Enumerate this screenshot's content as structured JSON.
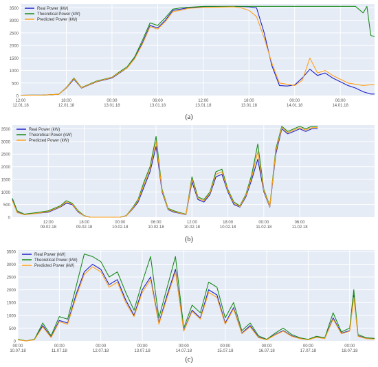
{
  "figure": {
    "captions": [
      "(a)",
      "(b)",
      "(c)"
    ]
  },
  "colors": {
    "real": "#1f1fc8",
    "theoretical": "#1a8a1a",
    "predicted": "#ffa11a",
    "plot_bg": "#e5ecf6",
    "grid": "#ffffff",
    "tick": "#555555"
  },
  "chart_data": [
    {
      "type": "line",
      "ylim": [
        0,
        3650
      ],
      "yticks": [
        0,
        500,
        1000,
        1500,
        2000,
        2500,
        3000,
        3500
      ],
      "xlim": [
        0,
        46.5
      ],
      "xticks": [
        {
          "x": 0,
          "label": "12:00",
          "sub": "12.01.18"
        },
        {
          "x": 6,
          "label": "18:00",
          "sub": "12.01.18"
        },
        {
          "x": 12,
          "label": "00:00",
          "sub": "13.01.18"
        },
        {
          "x": 18,
          "label": "06:00",
          "sub": "13.01.18"
        },
        {
          "x": 24,
          "label": "12:00",
          "sub": "13.01.18"
        },
        {
          "x": 30,
          "label": "18:00",
          "sub": "13.01.18"
        },
        {
          "x": 36,
          "label": "00:00",
          "sub": "14.01.18"
        },
        {
          "x": 42,
          "label": "06:00",
          "sub": "14.01.18"
        }
      ],
      "legend": {
        "placement": "top-left",
        "entries": [
          "Real Power (kW)",
          "Theoretical Power (kW)",
          "Predicted Power (kW)"
        ]
      },
      "series": [
        {
          "name": "Real Power (kW)",
          "x": [
            0,
            3,
            5,
            6,
            7,
            8,
            10,
            12,
            13,
            14,
            15,
            16,
            17,
            18,
            19,
            20,
            21,
            22,
            23,
            24,
            26,
            28,
            29,
            30,
            31,
            32,
            33,
            34,
            35,
            36,
            37,
            38,
            39,
            40,
            41,
            42,
            43,
            44,
            45,
            46,
            46.5
          ],
          "values": [
            10,
            20,
            50,
            300,
            650,
            300,
            550,
            700,
            900,
            1100,
            1500,
            2100,
            2800,
            2700,
            3000,
            3400,
            3450,
            3500,
            3520,
            3540,
            3550,
            3560,
            3550,
            3540,
            3500,
            2500,
            1200,
            400,
            380,
            420,
            700,
            1050,
            800,
            900,
            700,
            550,
            400,
            300,
            150,
            60,
            60
          ]
        },
        {
          "name": "Theoretical Power (kW)",
          "x": [
            0,
            3,
            5,
            6,
            7,
            8,
            10,
            12,
            13,
            14,
            15,
            16,
            17,
            18,
            19,
            20,
            21,
            22,
            23,
            24,
            26,
            28,
            30,
            32,
            34,
            36,
            38,
            40,
            42,
            44,
            45,
            45.5,
            46,
            46.5
          ],
          "values": [
            10,
            20,
            50,
            320,
            700,
            320,
            580,
            730,
            950,
            1150,
            1550,
            2200,
            2900,
            2800,
            3100,
            3450,
            3500,
            3520,
            3540,
            3560,
            3560,
            3560,
            3560,
            3560,
            3560,
            3560,
            3560,
            3560,
            3560,
            3560,
            3300,
            3560,
            2400,
            2350
          ]
        },
        {
          "name": "Predicted Power (kW)",
          "x": [
            0,
            3,
            5,
            6,
            7,
            8,
            10,
            12,
            13,
            14,
            15,
            16,
            17,
            18,
            19,
            20,
            21,
            22,
            23,
            24,
            26,
            28,
            29,
            30,
            31,
            32,
            33,
            34,
            35,
            36,
            37,
            38,
            39,
            40,
            41,
            42,
            43,
            44,
            45,
            46,
            46.5
          ],
          "values": [
            10,
            20,
            50,
            310,
            680,
            310,
            560,
            720,
            920,
            1100,
            1480,
            2050,
            2750,
            2650,
            2950,
            3350,
            3400,
            3480,
            3500,
            3520,
            3530,
            3540,
            3500,
            3400,
            3150,
            2300,
            1300,
            500,
            450,
            400,
            600,
            1500,
            900,
            1000,
            800,
            650,
            500,
            450,
            400,
            430,
            430
          ]
        }
      ]
    },
    {
      "type": "line",
      "ylim": [
        0,
        3650
      ],
      "yticks": [
        0,
        500,
        1000,
        1500,
        2000,
        2500,
        3000,
        3500
      ],
      "xlim": [
        0,
        60.5
      ],
      "xticks": [
        {
          "x": 6,
          "label": "12:00",
          "sub": "09.02.18"
        },
        {
          "x": 12,
          "label": "18:00",
          "sub": "09.02.18"
        },
        {
          "x": 18,
          "label": "00:00",
          "sub": "10.02.18"
        },
        {
          "x": 24,
          "label": "06:00",
          "sub": "10.02.18"
        },
        {
          "x": 30,
          "label": "12:00",
          "sub": "10.02.18"
        },
        {
          "x": 36,
          "label": "18:00",
          "sub": "10.02.18"
        },
        {
          "x": 42,
          "label": "00:00",
          "sub": "11.02.18"
        },
        {
          "x": 48,
          "label": "06:00",
          "sub": "11.02.18"
        }
      ],
      "legend": {
        "placement": "top-left",
        "entries": [
          "Real Power (kW)",
          "Theoretical Power (kW)",
          "Predicted Power (kW)"
        ]
      },
      "series": [
        {
          "name": "Real Power (kW)",
          "x": [
            0,
            0.8,
            2,
            4,
            6,
            8,
            9,
            10,
            11,
            12,
            13,
            15,
            17,
            18,
            19,
            20,
            21,
            22,
            23,
            24,
            25,
            26,
            27,
            28,
            29,
            30,
            31,
            32,
            33,
            34,
            35,
            36,
            37,
            38,
            39,
            40,
            41,
            42,
            43,
            44,
            45,
            46,
            47,
            48,
            49,
            50,
            51
          ],
          "values": [
            700,
            200,
            100,
            150,
            200,
            400,
            550,
            500,
            200,
            50,
            0,
            0,
            0,
            0,
            50,
            300,
            600,
            1200,
            1800,
            2800,
            1000,
            300,
            200,
            150,
            100,
            1400,
            700,
            600,
            900,
            1600,
            1700,
            1000,
            500,
            400,
            800,
            1500,
            2300,
            1000,
            400,
            2500,
            3500,
            3300,
            3400,
            3500,
            3400,
            3500,
            3500
          ]
        },
        {
          "name": "Theoretical Power (kW)",
          "x": [
            0,
            0.8,
            2,
            4,
            6,
            8,
            9,
            10,
            11,
            12,
            13,
            15,
            17,
            18,
            19,
            20,
            21,
            22,
            23,
            24,
            25,
            26,
            27,
            28,
            29,
            30,
            31,
            32,
            33,
            34,
            35,
            36,
            37,
            38,
            39,
            40,
            41,
            42,
            43,
            44,
            45,
            46,
            47,
            48,
            49,
            50,
            51
          ],
          "values": [
            750,
            250,
            120,
            180,
            250,
            450,
            650,
            550,
            250,
            60,
            0,
            0,
            0,
            0,
            60,
            350,
            700,
            1400,
            2000,
            3200,
            1100,
            350,
            250,
            180,
            120,
            1600,
            800,
            700,
            1000,
            1800,
            1900,
            1100,
            600,
            450,
            900,
            1700,
            2900,
            1100,
            450,
            2700,
            3600,
            3400,
            3500,
            3600,
            3500,
            3600,
            3600
          ]
        },
        {
          "name": "Predicted Power (kW)",
          "x": [
            0,
            0.8,
            2,
            4,
            6,
            8,
            9,
            10,
            11,
            12,
            13,
            15,
            17,
            18,
            19,
            20,
            21,
            22,
            23,
            24,
            25,
            26,
            27,
            28,
            29,
            30,
            31,
            32,
            33,
            34,
            35,
            36,
            37,
            38,
            39,
            40,
            41,
            42,
            43,
            44,
            45,
            46,
            47,
            48,
            49,
            50,
            51
          ],
          "values": [
            650,
            180,
            100,
            150,
            220,
            420,
            600,
            520,
            220,
            50,
            0,
            0,
            0,
            0,
            50,
            320,
            650,
            1300,
            1900,
            3000,
            1050,
            320,
            220,
            160,
            110,
            1500,
            750,
            650,
            950,
            1700,
            1800,
            1050,
            550,
            420,
            850,
            1600,
            2600,
            1050,
            420,
            2600,
            3550,
            3350,
            3450,
            3550,
            3450,
            3550,
            3550
          ]
        }
      ]
    },
    {
      "type": "line",
      "ylim": [
        0,
        3550
      ],
      "yticks": [
        0,
        500,
        1000,
        1500,
        2000,
        2500,
        3000,
        3500
      ],
      "xlim": [
        0,
        8.6
      ],
      "xticks": [
        {
          "x": 0,
          "label": "00:00",
          "sub": "10.07.18"
        },
        {
          "x": 1,
          "label": "00:00",
          "sub": "11.07.18"
        },
        {
          "x": 2,
          "label": "00:00",
          "sub": "12.07.18"
        },
        {
          "x": 3,
          "label": "00:00",
          "sub": "13.07.18"
        },
        {
          "x": 4,
          "label": "00:00",
          "sub": "14.07.18"
        },
        {
          "x": 5,
          "label": "00:00",
          "sub": "15.07.18"
        },
        {
          "x": 6,
          "label": "00:00",
          "sub": "16.07.18"
        },
        {
          "x": 7,
          "label": "00:00",
          "sub": "17.07.18"
        },
        {
          "x": 8,
          "label": "00:00",
          "sub": "18.07.18"
        }
      ],
      "legend": {
        "placement": "top-left",
        "entries": [
          "Real Power (kW)",
          "Theoretical Power (kW)",
          "Predicted Power (kW)"
        ]
      },
      "series": [
        {
          "name": "Real Power (kW)",
          "x": [
            0,
            0.2,
            0.4,
            0.6,
            0.8,
            1,
            1.2,
            1.4,
            1.6,
            1.8,
            2,
            2.2,
            2.4,
            2.6,
            2.8,
            3,
            3.2,
            3.4,
            3.6,
            3.8,
            4,
            4.2,
            4.4,
            4.6,
            4.8,
            5,
            5.2,
            5.4,
            5.6,
            5.8,
            6,
            6.2,
            6.4,
            6.6,
            6.8,
            7,
            7.2,
            7.4,
            7.6,
            7.8,
            8,
            8.1,
            8.2,
            8.4,
            8.6
          ],
          "values": [
            50,
            0,
            50,
            600,
            150,
            800,
            700,
            1800,
            2700,
            3000,
            2800,
            2200,
            2400,
            1600,
            1000,
            2000,
            2500,
            700,
            1800,
            2800,
            400,
            1200,
            900,
            2000,
            1800,
            700,
            1300,
            300,
            600,
            150,
            50,
            250,
            400,
            200,
            100,
            50,
            150,
            100,
            900,
            300,
            400,
            1800,
            200,
            100,
            80
          ]
        },
        {
          "name": "Theoretical Power (kW)",
          "x": [
            0,
            0.2,
            0.4,
            0.6,
            0.8,
            1,
            1.2,
            1.4,
            1.6,
            1.8,
            2,
            2.2,
            2.4,
            2.6,
            2.8,
            3,
            3.2,
            3.4,
            3.6,
            3.8,
            4,
            4.2,
            4.4,
            4.6,
            4.8,
            5,
            5.2,
            5.4,
            5.6,
            5.8,
            6,
            6.2,
            6.4,
            6.6,
            6.8,
            7,
            7.2,
            7.4,
            7.6,
            7.8,
            8,
            8.1,
            8.2,
            8.4,
            8.6
          ],
          "values": [
            60,
            0,
            60,
            700,
            200,
            950,
            850,
            2100,
            3400,
            3300,
            3100,
            2500,
            2700,
            1900,
            1200,
            2300,
            3300,
            900,
            2100,
            3300,
            500,
            1400,
            1100,
            2300,
            2100,
            900,
            1500,
            400,
            700,
            200,
            60,
            300,
            500,
            250,
            120,
            60,
            180,
            120,
            1100,
            350,
            500,
            2000,
            250,
            120,
            100
          ]
        },
        {
          "name": "Predicted Power (kW)",
          "x": [
            0,
            0.2,
            0.4,
            0.6,
            0.8,
            1,
            1.2,
            1.4,
            1.6,
            1.8,
            2,
            2.2,
            2.4,
            2.6,
            2.8,
            3,
            3.2,
            3.4,
            3.6,
            3.8,
            4,
            4.2,
            4.4,
            4.6,
            4.8,
            5,
            5.2,
            5.4,
            5.6,
            5.8,
            6,
            6.2,
            6.4,
            6.6,
            6.8,
            7,
            7.2,
            7.4,
            7.6,
            7.8,
            8,
            8.1,
            8.2,
            8.4,
            8.6
          ],
          "values": [
            40,
            0,
            40,
            550,
            130,
            750,
            650,
            1700,
            2600,
            2900,
            2700,
            2100,
            2300,
            1500,
            950,
            1900,
            2400,
            650,
            1700,
            2700,
            380,
            1150,
            850,
            1900,
            1700,
            650,
            1250,
            280,
            550,
            130,
            40,
            230,
            380,
            180,
            90,
            40,
            140,
            90,
            850,
            280,
            380,
            1700,
            180,
            90,
            70
          ]
        }
      ]
    }
  ]
}
